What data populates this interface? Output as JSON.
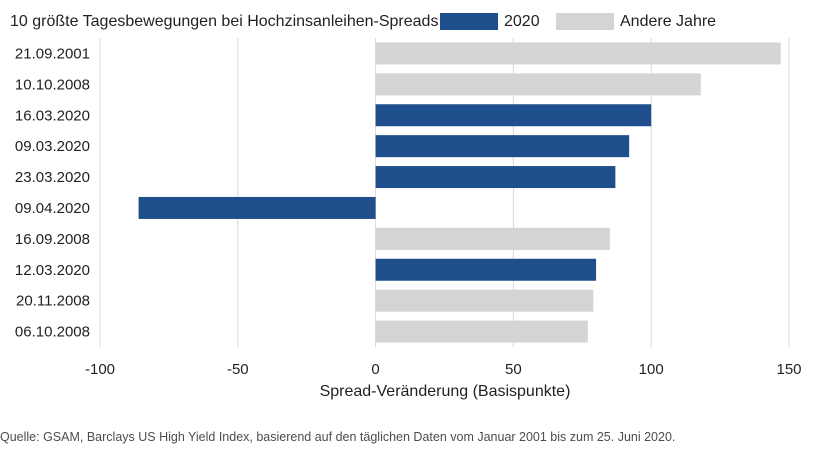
{
  "chart_data": {
    "type": "bar",
    "orientation": "horizontal",
    "title": "10 größte Tagesbewegungen bei Hochzinsanleihen-Spreads",
    "xlabel": "Spread-Veränderung (Basispunkte)",
    "ylabel": "",
    "xlim": [
      -100,
      150
    ],
    "xticks": [
      -100,
      -50,
      0,
      50,
      100,
      150
    ],
    "grid": "vertical",
    "legend": {
      "placement": "top",
      "entries": [
        {
          "name": "2020",
          "color": "#1f4e8c"
        },
        {
          "name": "Andere Jahre",
          "color": "#d4d4d4"
        }
      ]
    },
    "categories": [
      "21.09.2001",
      "10.10.2008",
      "16.03.2020",
      "09.03.2020",
      "23.03.2020",
      "09.04.2020",
      "16.09.2008",
      "12.03.2020",
      "20.11.2008",
      "06.10.2008"
    ],
    "values": [
      147,
      118,
      100,
      92,
      87,
      -86,
      85,
      80,
      79,
      77
    ],
    "groups": [
      "Andere Jahre",
      "Andere Jahre",
      "2020",
      "2020",
      "2020",
      "2020",
      "Andere Jahre",
      "2020",
      "Andere Jahre",
      "Andere Jahre"
    ]
  },
  "source": "Quelle: GSAM, Barclays US High Yield Index, basierend auf den täglichen Daten vom Januar 2001 bis zum 25. Juni 2020."
}
